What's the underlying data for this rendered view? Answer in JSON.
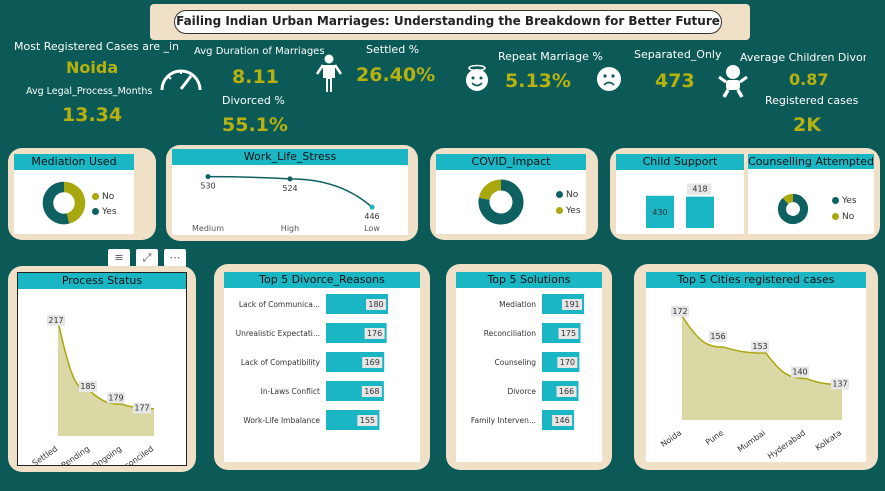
{
  "title": "Failing Indian Urban Marriages: Understanding the Breakdown for Better Future",
  "kpis": {
    "most_registered_label": "Most Registered Cases are _in",
    "most_registered_value": "Noida",
    "avg_legal_label": "Avg Legal_Process_Months",
    "avg_legal_value": "13.34",
    "avg_duration_label": "Avg Duration of Marriages",
    "avg_duration_value": "8.11",
    "divorced_label": "Divorced %",
    "divorced_value": "55.1%",
    "settled_label": "Settled %",
    "settled_value": "26.40%",
    "repeat_label": "Repeat Marriage %",
    "repeat_value": "5.13%",
    "separated_label": "Separated_Only",
    "separated_value": "473",
    "avg_children_label": "Average Children Divorc...",
    "avg_children_value": "0.87",
    "registered_label": "Registered cases",
    "registered_value": "2K"
  },
  "icons": {
    "gauge": "speedometer-icon",
    "person": "person-standing-icon",
    "happy": "smiling-face-icon",
    "sad": "sad-face-icon",
    "baby": "baby-icon"
  },
  "colors": {
    "background": "#0b5a57",
    "teal": "#0e6160",
    "olive": "#a9a70e",
    "cyan": "#1ab6c4",
    "card": "#f1e0c8",
    "area": "#d6d49a"
  },
  "toolbar": {
    "filter": "filter-icon",
    "focus": "focus-mode-icon",
    "more": "more-options-icon"
  },
  "chart_data": [
    {
      "id": "mediation",
      "type": "pie",
      "title": "Mediation Used",
      "donut": true,
      "labels": [
        "No",
        "Yes"
      ],
      "values": [
        46,
        54
      ],
      "legend": "right"
    },
    {
      "id": "work_life",
      "type": "line",
      "title": "Work_Life_Stress",
      "categories": [
        "Medium",
        "High",
        "Low"
      ],
      "values": [
        530,
        524,
        446
      ],
      "data_labels": [
        "530",
        "524",
        "446"
      ]
    },
    {
      "id": "covid",
      "type": "pie",
      "title": "COVID_Impact",
      "donut": true,
      "labels": [
        "No",
        "Yes"
      ],
      "values": [
        78,
        22
      ],
      "legend": "right"
    },
    {
      "id": "child_support",
      "type": "bar",
      "title": "Child Support",
      "categories": [
        "",
        ""
      ],
      "values": [
        430,
        418
      ],
      "data_labels": [
        "430",
        "418"
      ]
    },
    {
      "id": "counselling",
      "type": "pie",
      "title": "Counselling Attempted",
      "donut": true,
      "labels": [
        "Yes",
        "No"
      ],
      "values": [
        88,
        12
      ],
      "legend": "right"
    },
    {
      "id": "process",
      "type": "area",
      "title": "Process Status",
      "categories": [
        "Settled",
        "Pending",
        "Ongoing",
        "Reconciled"
      ],
      "values": [
        217,
        185,
        179,
        177
      ],
      "data_labels": [
        "217",
        "185",
        "179",
        "177"
      ]
    },
    {
      "id": "reasons",
      "type": "bar",
      "orientation": "horizontal",
      "title": "Top 5 Divorce_Reasons",
      "categories": [
        "Lack of Communica...",
        "Unrealistic Expectati...",
        "Lack of Compatibility",
        "In-Laws Conflict",
        "Work-Life Imbalance"
      ],
      "values": [
        180,
        176,
        169,
        168,
        155
      ],
      "data_labels": [
        "180",
        "176",
        "169",
        "168",
        "155"
      ]
    },
    {
      "id": "solutions",
      "type": "bar",
      "orientation": "horizontal",
      "title": "Top 5 Solutions",
      "categories": [
        "Mediation",
        "Reconciliation",
        "Counseling",
        "Divorce",
        "Family Interven..."
      ],
      "values": [
        191,
        175,
        170,
        166,
        146
      ],
      "data_labels": [
        "191",
        "175",
        "170",
        "166",
        "146"
      ]
    },
    {
      "id": "cities",
      "type": "area",
      "title": "Top 5 Cities registered cases",
      "categories": [
        "Noida",
        "Pune",
        "Mumbai",
        "Hyderabad",
        "Kolkata"
      ],
      "values": [
        172,
        156,
        153,
        140,
        137
      ],
      "data_labels": [
        "172",
        "156",
        "153",
        "140",
        "137"
      ]
    }
  ]
}
